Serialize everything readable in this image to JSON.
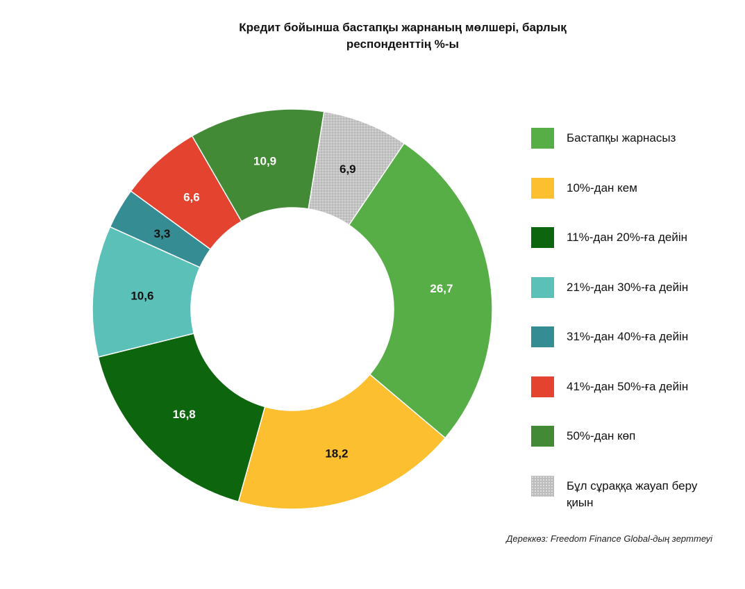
{
  "chart_data": {
    "type": "pie",
    "donut": true,
    "title_line1": "Кредит бойынша бастапқы жарнаның мөлшері, барлық",
    "title_line2": "респонденттің %-ы",
    "slices": [
      {
        "label": "Бастапқы жарнасыз",
        "value": 26.7,
        "display": "26,7",
        "color": "#57ae46",
        "text_color": "#ffffff"
      },
      {
        "label": "10%-дан кем",
        "value": 18.2,
        "display": "18,2",
        "color": "#fbbf2f",
        "text_color": "#111111"
      },
      {
        "label": "11%-дан 20%-ға дейін",
        "value": 16.8,
        "display": "16,8",
        "color": "#0d650d",
        "text_color": "#ffffff"
      },
      {
        "label": "21%-дан 30%-ға дейін",
        "value": 10.6,
        "display": "10,6",
        "color": "#5bc0b8",
        "text_color": "#111111"
      },
      {
        "label": "31%-дан 40%-ға дейін",
        "value": 3.3,
        "display": "3,3",
        "color": "#368c93",
        "text_color": "#111111"
      },
      {
        "label": "41%-дан 50%-ға дейін",
        "value": 6.6,
        "display": "6,6",
        "color": "#e4432f",
        "text_color": "#ffffff"
      },
      {
        "label": "50%-дан көп",
        "value": 10.9,
        "display": "10,9",
        "color": "#428a35",
        "text_color": "#ffffff"
      },
      {
        "label": "Бұл сұраққа жауап беру қиын",
        "value": 6.9,
        "display": "6,9",
        "color": "#c4c4c4",
        "text_color": "#111111",
        "pattern": "dotted"
      }
    ],
    "legend_position": "right"
  },
  "source": "Дереккөз: Freedom Finance Global-дың зерттеуі"
}
